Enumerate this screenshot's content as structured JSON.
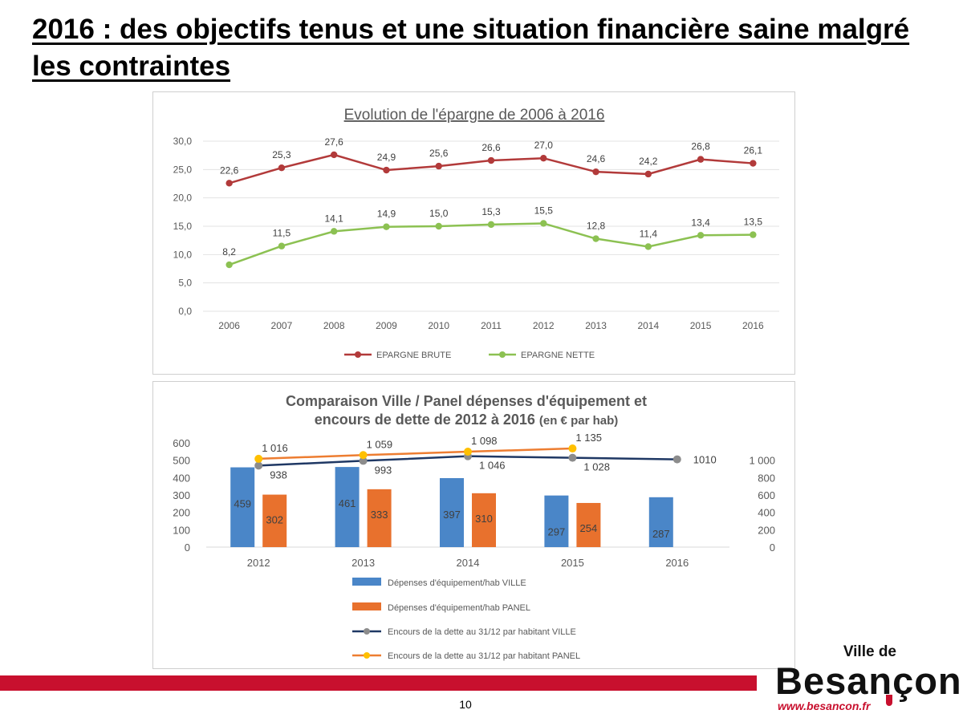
{
  "slide": {
    "title": "2016 : des objectifs tenus et une situation financière saine malgré les contraintes",
    "page_number": "10"
  },
  "logo": {
    "top_text": "Ville de",
    "main_text": "Besançon",
    "url": "www.besancon.fr",
    "accent_color": "#c8102e"
  },
  "chart_data": [
    {
      "type": "line",
      "title": "Evolution de l'épargne de 2006 à 2016",
      "x": [
        "2006",
        "2007",
        "2008",
        "2009",
        "2010",
        "2011",
        "2012",
        "2013",
        "2014",
        "2015",
        "2016"
      ],
      "ylim": [
        0,
        30
      ],
      "yticks": [
        "0,0",
        "5,0",
        "10,0",
        "15,0",
        "20,0",
        "25,0",
        "30,0"
      ],
      "grid": true,
      "legend_position": "bottom",
      "series": [
        {
          "name": "EPARGNE BRUTE",
          "color": "#b23a3a",
          "values": [
            22.6,
            25.3,
            27.6,
            24.9,
            25.6,
            26.6,
            27.0,
            24.6,
            24.2,
            26.8,
            26.1
          ],
          "labels": [
            "22,6",
            "25,3",
            "27,6",
            "24,9",
            "25,6",
            "26,6",
            "27,0",
            "24,6",
            "24,2",
            "26,8",
            "26,1"
          ]
        },
        {
          "name": "EPARGNE NETTE",
          "color": "#8cc152",
          "values": [
            8.2,
            11.5,
            14.1,
            14.9,
            15.0,
            15.3,
            15.5,
            12.8,
            11.4,
            13.4,
            13.5
          ],
          "labels": [
            "8,2",
            "11,5",
            "14,1",
            "14,9",
            "15,0",
            "15,3",
            "15,5",
            "12,8",
            "11,4",
            "13,4",
            "13,5"
          ]
        }
      ]
    },
    {
      "type": "bar",
      "title": "Comparaison Ville / Panel dépenses d'équipement et encours de dette de 2012 à 2016",
      "title_unit": "(en € par hab)",
      "categories": [
        "2012",
        "2013",
        "2014",
        "2015",
        "2016"
      ],
      "ylim": [
        0,
        600
      ],
      "yticks": [
        "0",
        "100",
        "200",
        "300",
        "400",
        "500",
        "600"
      ],
      "y2lim": [
        0,
        1200
      ],
      "y2ticks": [
        "0",
        "200",
        "400",
        "600",
        "800",
        "1 000"
      ],
      "grid": false,
      "legend_position": "bottom",
      "bar_series": [
        {
          "name": "Dépenses d'équipement/hab  VILLE",
          "color": "#4a86c8",
          "values": [
            459,
            461,
            397,
            297,
            287
          ],
          "labels": [
            "459",
            "461",
            "397",
            "297",
            "287"
          ]
        },
        {
          "name": "Dépenses d'équipement/hab  PANEL",
          "color": "#e8712d",
          "values": [
            302,
            333,
            310,
            254,
            null
          ],
          "labels": [
            "302",
            "333",
            "310",
            "254",
            ""
          ]
        }
      ],
      "line_series": [
        {
          "name": "Encours de la dette au 31/12 par habitant VILLE",
          "color": "#1f3864",
          "marker_color": "#8c8c8c",
          "values": [
            938,
            993,
            1046,
            1028,
            1010
          ],
          "labels": [
            "938",
            "993",
            "1 046",
            "1 028",
            "1010"
          ]
        },
        {
          "name": "Encours de la dette au 31/12 par habitant PANEL",
          "color": "#ed7d31",
          "marker_color": "#ffc000",
          "values": [
            1016,
            1059,
            1098,
            1135,
            null
          ],
          "labels": [
            "1 016",
            "1 059",
            "1 098",
            "1 135",
            ""
          ]
        }
      ]
    }
  ]
}
